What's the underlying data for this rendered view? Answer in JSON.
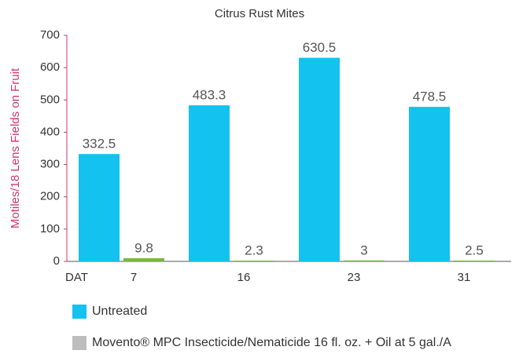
{
  "chart_data": {
    "type": "bar",
    "title": "Citrus Rust Mites",
    "y_label": "Motiles/18 Lens Fields on Fruit",
    "x_annotation": "DAT",
    "categories": [
      "7",
      "16",
      "23",
      "31"
    ],
    "series": [
      {
        "name": "Untreated",
        "color": "#13c2ef",
        "legend_color": "#13c2ef",
        "values": [
          332.5,
          483.3,
          630.5,
          478.5
        ]
      },
      {
        "name": "Movento® MPC Insecticide/Nematicide 16 fl. oz. + Oil at 5 gal./A",
        "color": "#78b843",
        "legend_color": "#bdbdbd",
        "values": [
          9.8,
          2.3,
          3,
          2.5
        ]
      }
    ],
    "ylim": [
      0,
      700
    ],
    "yticks": [
      0,
      100,
      200,
      300,
      400,
      500,
      600,
      700
    ],
    "axis_color": "#d6336c",
    "grid": false
  }
}
